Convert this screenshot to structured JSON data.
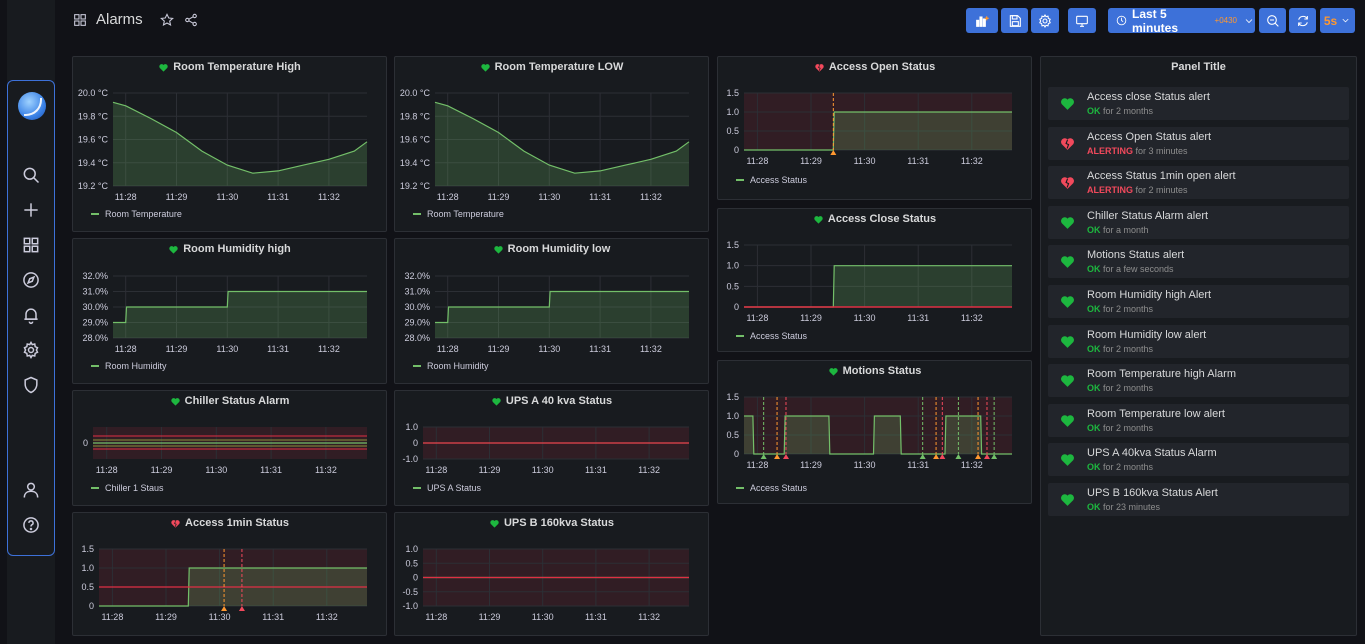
{
  "header": {
    "title": "Alarms",
    "time_range": "Last 5 minutes",
    "timezone": "+0430",
    "refresh_interval": "5s"
  },
  "colors": {
    "series_green": "#73bf69",
    "ok": "#1db73f",
    "alerting": "#f2495c",
    "accent_blue": "#3d71d9",
    "threshold_red": "#e02f44",
    "annotation_orange": "#ff9830"
  },
  "sidebar": {
    "items": [
      "search-icon",
      "plus-icon",
      "dashboards-icon",
      "explore-icon",
      "alerting-bell-icon",
      "configuration-gear-icon",
      "shield-icon",
      "user-icon",
      "help-icon"
    ]
  },
  "panels": [
    {
      "id": "room-temp-high",
      "title": "Room Temperature High",
      "state": "ok",
      "legend": "Room Temperature",
      "y_ticks": [
        "20.0 °C",
        "19.8 °C",
        "19.6 °C",
        "19.4 °C",
        "19.2 °C"
      ],
      "x_ticks": [
        "11:28",
        "11:29",
        "11:30",
        "11:31",
        "11:32"
      ]
    },
    {
      "id": "room-temp-low",
      "title": "Room Temperature LOW",
      "state": "ok",
      "legend": "Room Temperature",
      "y_ticks": [
        "20.0 °C",
        "19.8 °C",
        "19.6 °C",
        "19.4 °C",
        "19.2 °C"
      ],
      "x_ticks": [
        "11:28",
        "11:29",
        "11:30",
        "11:31",
        "11:32"
      ]
    },
    {
      "id": "access-open",
      "title": "Access Open Status",
      "state": "alerting",
      "legend": "Access Status",
      "y_ticks": [
        "1.5",
        "1.0",
        "0.5",
        "0"
      ],
      "x_ticks": [
        "11:28",
        "11:29",
        "11:30",
        "11:31",
        "11:32"
      ]
    },
    {
      "id": "room-hum-high",
      "title": "Room Humidity high",
      "state": "ok",
      "legend": "Room Humidity",
      "y_ticks": [
        "32.0%",
        "31.0%",
        "30.0%",
        "29.0%",
        "28.0%"
      ],
      "x_ticks": [
        "11:28",
        "11:29",
        "11:30",
        "11:31",
        "11:32"
      ]
    },
    {
      "id": "room-hum-low",
      "title": "Room Humidity low",
      "state": "ok",
      "legend": "Room Humidity",
      "y_ticks": [
        "32.0%",
        "31.0%",
        "30.0%",
        "29.0%",
        "28.0%"
      ],
      "x_ticks": [
        "11:28",
        "11:29",
        "11:30",
        "11:31",
        "11:32"
      ]
    },
    {
      "id": "access-close",
      "title": "Access Close Status",
      "state": "ok",
      "legend": "Access Status",
      "y_ticks": [
        "1.5",
        "1.0",
        "0.5",
        "0"
      ],
      "x_ticks": [
        "11:28",
        "11:29",
        "11:30",
        "11:31",
        "11:32"
      ]
    },
    {
      "id": "chiller",
      "title": "Chiller Status Alarm",
      "state": "ok",
      "legend": "Chiller 1 Staus",
      "y_ticks": [
        "0"
      ],
      "x_ticks": [
        "11:28",
        "11:29",
        "11:30",
        "11:31",
        "11:32"
      ]
    },
    {
      "id": "ups-a",
      "title": "UPS A 40 kva Status",
      "state": "ok",
      "legend": "UPS A Status",
      "y_ticks": [
        "1.0",
        "0",
        "-1.0"
      ],
      "x_ticks": [
        "11:28",
        "11:29",
        "11:30",
        "11:31",
        "11:32"
      ]
    },
    {
      "id": "motions",
      "title": "Motions Status",
      "state": "ok",
      "legend": "Access Status",
      "y_ticks": [
        "1.5",
        "1.0",
        "0.5",
        "0"
      ],
      "x_ticks": [
        "11:28",
        "11:29",
        "11:30",
        "11:31",
        "11:32"
      ]
    },
    {
      "id": "access-1min",
      "title": "Access 1min Status",
      "state": "alerting",
      "legend": "",
      "y_ticks": [
        "1.5",
        "1.0",
        "0.5",
        "0"
      ],
      "x_ticks": [
        "11:28",
        "11:29",
        "11:30",
        "11:31",
        "11:32"
      ]
    },
    {
      "id": "ups-b",
      "title": "UPS B 160kva Status",
      "state": "ok",
      "legend": "",
      "y_ticks": [
        "1.0",
        "0.5",
        "0",
        "-0.5",
        "-1.0"
      ],
      "x_ticks": [
        "11:28",
        "11:29",
        "11:30",
        "11:31",
        "11:32"
      ]
    }
  ],
  "chart_data": [
    {
      "type": "area",
      "title": "Room Temperature High",
      "ylim": [
        19.2,
        20.0
      ],
      "x": [
        "11:27:45",
        "11:28",
        "11:28:30",
        "11:29",
        "11:29:30",
        "11:30",
        "11:30:30",
        "11:31",
        "11:31:30",
        "11:32",
        "11:32:30",
        "11:32:45"
      ],
      "series": [
        {
          "name": "Room Temperature",
          "values": [
            19.92,
            19.89,
            19.78,
            19.66,
            19.5,
            19.38,
            19.31,
            19.33,
            19.38,
            19.43,
            19.5,
            19.58
          ]
        }
      ]
    },
    {
      "type": "area",
      "title": "Room Temperature LOW",
      "ylim": [
        19.2,
        20.0
      ],
      "x": [
        "11:27:45",
        "11:28",
        "11:28:30",
        "11:29",
        "11:29:30",
        "11:30",
        "11:30:30",
        "11:31",
        "11:31:30",
        "11:32",
        "11:32:30",
        "11:32:45"
      ],
      "series": [
        {
          "name": "Room Temperature",
          "values": [
            19.92,
            19.89,
            19.78,
            19.66,
            19.5,
            19.38,
            19.31,
            19.33,
            19.38,
            19.43,
            19.5,
            19.58
          ]
        }
      ]
    },
    {
      "type": "line",
      "title": "Access Open Status",
      "ylim": [
        0,
        1.5
      ],
      "x": [
        "11:27:45",
        "11:29:25",
        "11:29:26",
        "11:32:45"
      ],
      "series": [
        {
          "name": "Access Status",
          "values": [
            0,
            0,
            1,
            1
          ]
        }
      ]
    },
    {
      "type": "area",
      "title": "Room Humidity high",
      "ylim": [
        28,
        32
      ],
      "x": [
        "11:27:45",
        "11:28",
        "11:28:01",
        "11:30",
        "11:30:01",
        "11:32:45"
      ],
      "series": [
        {
          "name": "Room Humidity",
          "values": [
            29,
            29,
            30,
            30,
            31,
            31
          ]
        }
      ]
    },
    {
      "type": "area",
      "title": "Room Humidity low",
      "ylim": [
        28,
        32
      ],
      "x": [
        "11:27:45",
        "11:28",
        "11:28:01",
        "11:30",
        "11:30:01",
        "11:32:45"
      ],
      "series": [
        {
          "name": "Room Humidity",
          "values": [
            29,
            29,
            30,
            30,
            31,
            31
          ]
        }
      ]
    },
    {
      "type": "line",
      "title": "Access Close Status",
      "ylim": [
        0,
        1.5
      ],
      "x": [
        "11:27:45",
        "11:29:25",
        "11:29:26",
        "11:32:45"
      ],
      "series": [
        {
          "name": "Access Status",
          "values": [
            0,
            0,
            1,
            1
          ]
        }
      ]
    },
    {
      "type": "line",
      "title": "Chiller Status Alarm",
      "ylim": [
        -1,
        1
      ],
      "x": [
        "11:27:45",
        "11:32:45"
      ],
      "series": [
        {
          "name": "Chiller 1 Staus",
          "values": [
            0,
            0
          ]
        }
      ]
    },
    {
      "type": "line",
      "title": "UPS A 40 kva Status",
      "ylim": [
        -1,
        1
      ],
      "x": [
        "11:27:45",
        "11:32:45"
      ],
      "series": [
        {
          "name": "UPS A Status",
          "values": [
            0,
            0
          ]
        }
      ]
    },
    {
      "type": "line",
      "title": "Motions Status",
      "ylim": [
        0,
        1.5
      ],
      "x": [
        "11:27:45",
        "11:27:55",
        "11:27:56",
        "11:28:30",
        "11:28:31",
        "11:29:20",
        "11:29:21",
        "11:30:10",
        "11:30:11",
        "11:30:40",
        "11:30:41",
        "11:31:30",
        "11:31:31",
        "11:32:10",
        "11:32:11",
        "11:32:45"
      ],
      "series": [
        {
          "name": "Access Status",
          "values": [
            1,
            1,
            0,
            0,
            1,
            1,
            0,
            0,
            1,
            1,
            0,
            0,
            1,
            1,
            0,
            0
          ]
        }
      ]
    },
    {
      "type": "line",
      "title": "Access 1min Status",
      "ylim": [
        0,
        1.5
      ],
      "x": [
        "11:27:45",
        "11:29:25",
        "11:29:26",
        "11:32:45"
      ],
      "series": [
        {
          "values": [
            0,
            0,
            1,
            1
          ]
        }
      ]
    },
    {
      "type": "line",
      "title": "UPS B 160kva Status",
      "ylim": [
        -1,
        1
      ],
      "x": [
        "11:27:45",
        "11:32:45"
      ],
      "series": [
        {
          "values": [
            0,
            0
          ]
        }
      ]
    }
  ],
  "alert_list": {
    "title": "Panel Title",
    "items": [
      {
        "name": "Access close Status alert",
        "state": "OK",
        "duration": "for 2 months"
      },
      {
        "name": "Access Open Status alert",
        "state": "ALERTING",
        "duration": "for 3 minutes"
      },
      {
        "name": "Access Status 1min open alert",
        "state": "ALERTING",
        "duration": "for 2 minutes"
      },
      {
        "name": "Chiller Status Alarm alert",
        "state": "OK",
        "duration": "for a month"
      },
      {
        "name": "Motions Status alert",
        "state": "OK",
        "duration": "for a few seconds"
      },
      {
        "name": "Room Humidity high Alert",
        "state": "OK",
        "duration": "for 2 months"
      },
      {
        "name": "Room Humidity low alert",
        "state": "OK",
        "duration": "for 2 months"
      },
      {
        "name": "Room Temperature high Alarm",
        "state": "OK",
        "duration": "for 2 months"
      },
      {
        "name": "Room Temperature low alert",
        "state": "OK",
        "duration": "for 2 months"
      },
      {
        "name": "UPS A 40kva Status Alarm",
        "state": "OK",
        "duration": "for 2 months"
      },
      {
        "name": "UPS B 160kva Status Alert",
        "state": "OK",
        "duration": "for 23 minutes"
      }
    ]
  }
}
